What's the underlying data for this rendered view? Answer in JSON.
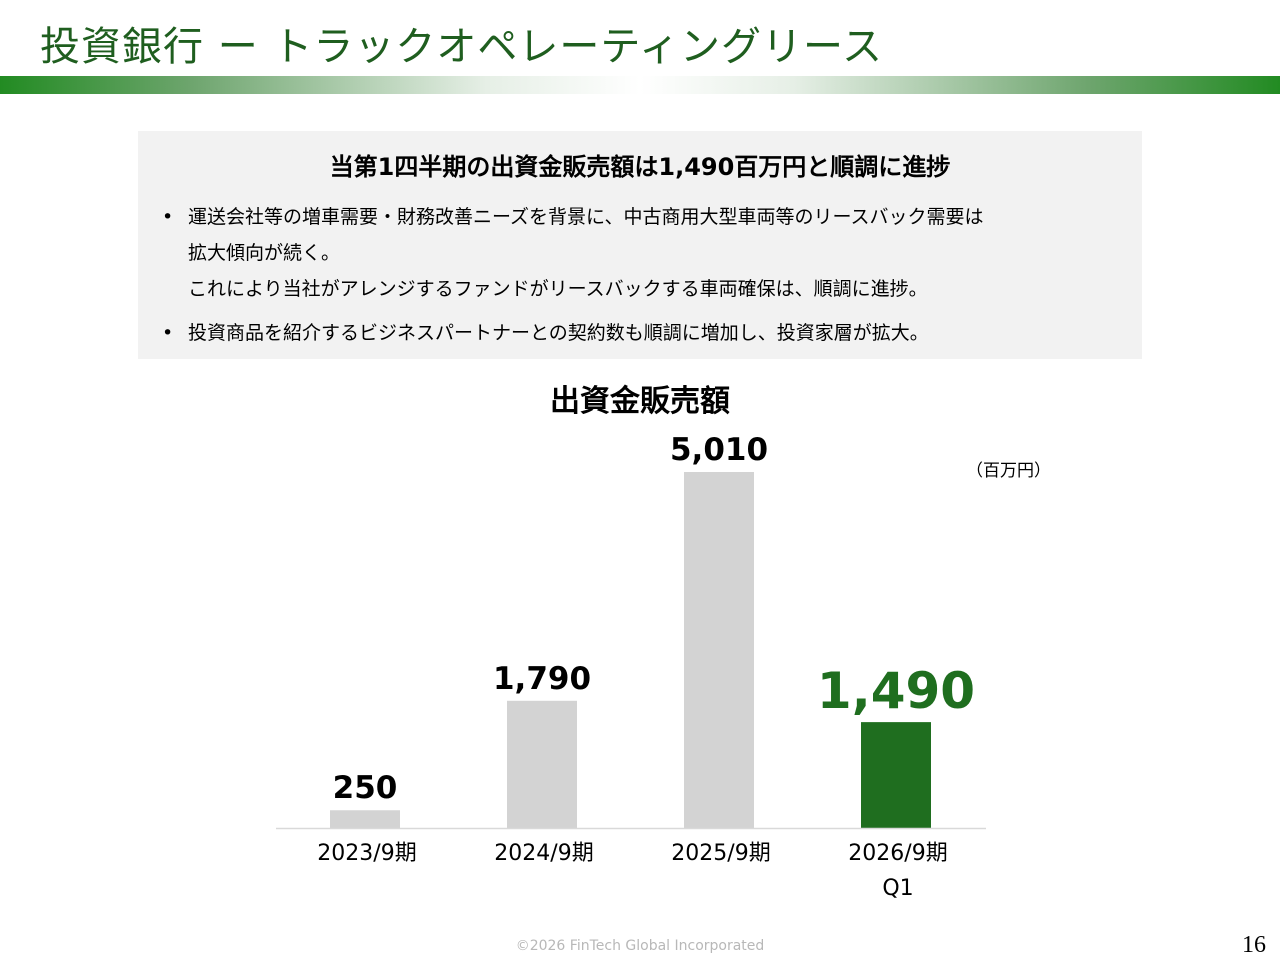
{
  "slide": {
    "title": "投資銀行 ー トラックオペレーティングリース",
    "page_number": "16",
    "footer": "©2026 FinTech Global Incorporated"
  },
  "summary": {
    "heading": "当第1四半期の出資金販売額は1,490百万円と順調に進捗",
    "bullets": [
      {
        "marker": "•",
        "lines": [
          "運送会社等の増車需要・財務改善ニーズを背景に、中古商用大型車両等のリースバック需要は",
          "拡大傾向が続く。",
          "これにより当社がアレンジするファンドがリースバックする車両確保は、順調に進捗。"
        ]
      },
      {
        "marker": "•",
        "lines": [
          "投資商品を紹介するビジネスパートナーとの契約数も順調に増加し、投資家層が拡大。"
        ]
      }
    ]
  },
  "chart_data": {
    "type": "bar",
    "title": "出資金販売額",
    "unit_label": "（百万円）",
    "categories": [
      "2023/9期",
      "2024/9期",
      "2025/9期",
      "2026/9期\nQ1"
    ],
    "values": [
      250,
      1790,
      5010,
      1490
    ],
    "value_labels": [
      "250",
      "1,790",
      "5,010",
      "1,490"
    ],
    "ylim": [
      0,
      5010
    ],
    "highlight_index": 3,
    "colors": {
      "default": "#d3d3d3",
      "highlight": "#1f6e1f",
      "axis": "#d9d9d9"
    },
    "grid": false
  }
}
